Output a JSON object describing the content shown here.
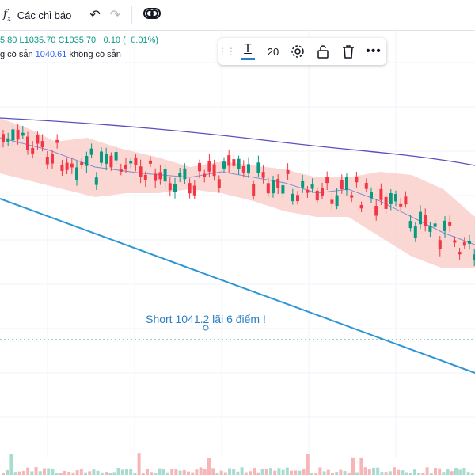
{
  "toolbar": {
    "indicators_label": "Các chỉ báo",
    "icons": [
      "function-icon",
      "undo-icon",
      "redo-icon",
      "compare-icon"
    ]
  },
  "legend": {
    "line1_left": "5.80",
    "line1_low": "L1035.70",
    "line1_close": "C1035.70",
    "line1_change": "−0.10 (−0.01%)",
    "line2_prefix": "g có sẵn",
    "line2_value": "1040.61",
    "line2_suffix": "không có sẵn"
  },
  "drawing_toolbar": {
    "text_tool_icon": "text-icon",
    "font_size": "20",
    "icons": [
      "settings-icon",
      "lock-icon",
      "delete-icon",
      "more-icon"
    ]
  },
  "annotation": {
    "text": "Short 1041.2 lãi 6 điểm !"
  },
  "colors": {
    "up": "#089981",
    "down": "#f23645",
    "band_fill": "#f9c9c4",
    "ma_long": "#5b4fbf",
    "ma_mid": "#7e8fd6",
    "trendline": "#2f96d6",
    "annotation": "#2a7fc4"
  }
}
